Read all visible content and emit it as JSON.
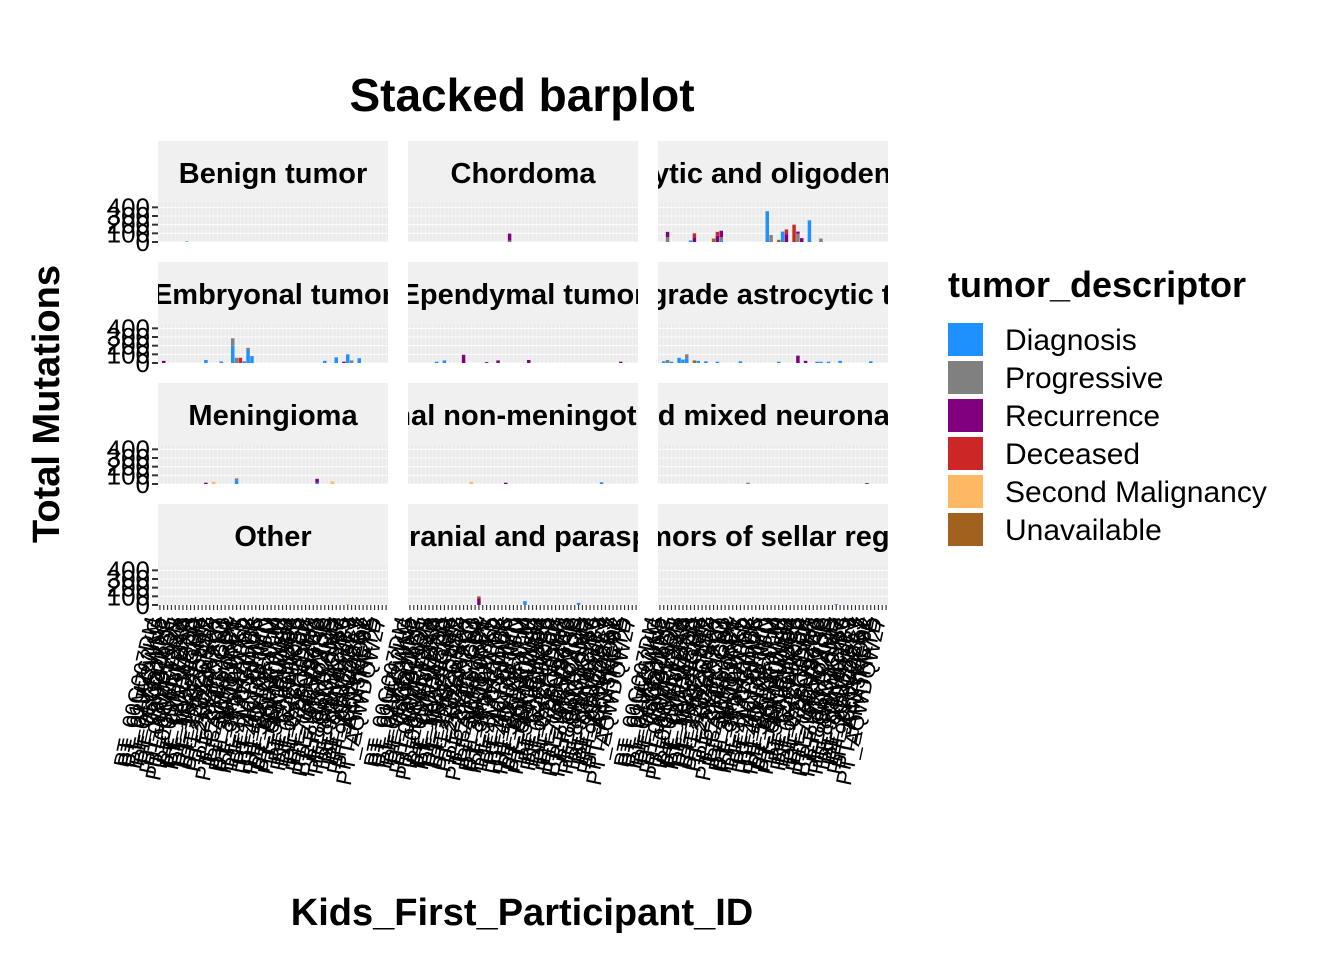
{
  "chart_data": {
    "type": "bar",
    "stacked": true,
    "title": "Stacked barplot",
    "xlabel": "Kids_First_Participant_ID",
    "ylabel": "Total Mutations",
    "y_ticks": [
      0,
      100,
      200,
      300,
      400
    ],
    "ylim": [
      0,
      450
    ],
    "grid": true,
    "facet_columns": 3,
    "legend": {
      "title": "tumor_descriptor",
      "position": "right",
      "entries": [
        {
          "name": "Diagnosis",
          "color": "#1E90FF"
        },
        {
          "name": "Progressive",
          "color": "#808080"
        },
        {
          "name": "Recurrence",
          "color": "#800080"
        },
        {
          "name": "Deceased",
          "color": "#CD2626"
        },
        {
          "name": "Second Malignancy",
          "color": "#FDB863"
        },
        {
          "name": "Unavailable",
          "color": "#A0621E"
        }
      ]
    },
    "x_tick_labels": [
      "PT_00G007DM",
      "PT_01MZ62KG",
      "PT_02J5CWN5",
      "PT_04V47WFC",
      "PT_05QDZ5XF",
      "PT_06A7FKQ1",
      "PT_08M919BH",
      "PT_0DWRY9ZX",
      "PT_0GFEFXX8",
      "PT_0QM4WEXR",
      "PT_0SPKM4S8",
      "PT_0XP3F2ZQ",
      "PT_1AAJ9GBH",
      "PT_1E3E6GMF",
      "PT_1H2REHT2",
      "PT_1YS2D4SX",
      "PT_23NZGSRJ",
      "PT_25Z2NX27",
      "PT_2ECVKTTQ",
      "PT_2MZPGZN1",
      "PT_2YT37G8P",
      "PT_37B5JRP1",
      "PT_3AWKWXEV",
      "PT_3CHB9PK5",
      "PT_3FJT2VYD",
      "PT_3KM9W8S8",
      "PT_3P3HZAMK",
      "PT_3T3VGWC6",
      "PT_3VCS1PPF",
      "PT_41TPBHMN",
      "PT_46JXEN4D",
      "PT_4KT6K1TM",
      "PT_4QAN2XPM",
      "PT_4ZR3FM28",
      "PT_52NXEHNM",
      "PT_56MA0XEB",
      "PT_5DFBV0BM",
      "PT_5NCBHBC6",
      "PT_5PNGW2B6",
      "PT_5ZPPR06P",
      "PT_62ZA1EC4",
      "PT_6FBYEDHK",
      "PT_6YZCG2HJ",
      "PT_72BQ54G6",
      "PT_79BY86AP",
      "PT_7EC5FMSD",
      "PT_7P4V6XCS",
      "PT_7WN7C4MB",
      "PT_82MX6J77",
      "PT_8GN3TQRM",
      "PT_8PA5K9BS",
      "PT_8RDWC1B9",
      "PT_91NVMX1Y",
      "PT_99S5BPE3",
      "PT_9GKZZ8AY",
      "PT_9PJR0ZK7",
      "PT_9S6WMQ92",
      "PT_A4E3KCYE",
      "PT_AFXTHFTD",
      "PT_AQWDQW27"
    ],
    "series_names": [
      "Diagnosis",
      "Progressive",
      "Recurrence",
      "Deceased",
      "Second Malignancy",
      "Unavailable"
    ],
    "facets": [
      {
        "label": "Benign tumor",
        "bars": [
          {
            "pos": 7,
            "values": [
              6,
              0,
              0,
              0,
              0,
              0
            ]
          }
        ]
      },
      {
        "label": "Chordoma",
        "bars": [
          {
            "pos": 26,
            "values": [
              0,
              15,
              82,
              0,
              0,
              0
            ]
          }
        ]
      },
      {
        "label": "Diffuse astrocytic and oligodendroglial tumor",
        "bars": [
          {
            "pos": 2,
            "values": [
              0,
              55,
              62,
              0,
              0,
              0
            ]
          },
          {
            "pos": 8,
            "values": [
              18,
              0,
              0,
              0,
              0,
              0
            ]
          },
          {
            "pos": 9,
            "values": [
              0,
              0,
              55,
              45,
              0,
              0
            ]
          },
          {
            "pos": 14,
            "values": [
              0,
              0,
              0,
              0,
              0,
              40
            ]
          },
          {
            "pos": 15,
            "values": [
              0,
              0,
              72,
              45,
              0,
              0
            ]
          },
          {
            "pos": 16,
            "values": [
              15,
              40,
              75,
              0,
              0,
              0
            ]
          },
          {
            "pos": 28,
            "values": [
              355,
              0,
              0,
              0,
              0,
              0
            ]
          },
          {
            "pos": 29,
            "values": [
              0,
              80,
              0,
              0,
              0,
              0
            ]
          },
          {
            "pos": 31,
            "values": [
              0,
              0,
              0,
              0,
              0,
              25
            ]
          },
          {
            "pos": 32,
            "values": [
              120,
              0,
              0,
              0,
              0,
              0
            ]
          },
          {
            "pos": 33,
            "values": [
              0,
              0,
              90,
              55,
              0,
              0
            ]
          },
          {
            "pos": 35,
            "values": [
              0,
              0,
              0,
              200,
              0,
              0
            ]
          },
          {
            "pos": 36,
            "values": [
              0,
              95,
              25,
              0,
              0,
              0
            ]
          },
          {
            "pos": 37,
            "values": [
              0,
              0,
              45,
              0,
              0,
              0
            ]
          },
          {
            "pos": 39,
            "values": [
              250,
              0,
              0,
              0,
              0,
              0
            ]
          },
          {
            "pos": 42,
            "values": [
              0,
              40,
              0,
              0,
              0,
              0
            ]
          }
        ]
      },
      {
        "label": "Embryonal tumor",
        "bars": [
          {
            "pos": 1,
            "values": [
              0,
              0,
              25,
              0,
              0,
              0
            ]
          },
          {
            "pos": 12,
            "values": [
              35,
              0,
              0,
              0,
              0,
              0
            ]
          },
          {
            "pos": 16,
            "values": [
              18,
              0,
              0,
              0,
              0,
              0
            ]
          },
          {
            "pos": 19,
            "values": [
              200,
              85,
              0,
              0,
              0,
              0
            ]
          },
          {
            "pos": 20,
            "values": [
              0,
              60,
              0,
              0,
              0,
              0
            ]
          },
          {
            "pos": 21,
            "values": [
              0,
              0,
              0,
              60,
              0,
              0
            ]
          },
          {
            "pos": 22,
            "values": [
              20,
              0,
              0,
              0,
              0,
              0
            ]
          },
          {
            "pos": 23,
            "values": [
              150,
              25,
              0,
              0,
              0,
              0
            ]
          },
          {
            "pos": 24,
            "values": [
              80,
              0,
              0,
              0,
              0,
              0
            ]
          },
          {
            "pos": 43,
            "values": [
              25,
              0,
              0,
              0,
              0,
              0
            ]
          },
          {
            "pos": 46,
            "values": [
              65,
              0,
              0,
              0,
              0,
              0
            ]
          },
          {
            "pos": 48,
            "values": [
              0,
              0,
              15,
              0,
              0,
              0
            ]
          },
          {
            "pos": 49,
            "values": [
              100,
              0,
              0,
              0,
              0,
              0
            ]
          },
          {
            "pos": 50,
            "values": [
              0,
              30,
              0,
              0,
              0,
              0
            ]
          },
          {
            "pos": 52,
            "values": [
              55,
              0,
              0,
              0,
              0,
              0
            ]
          }
        ]
      },
      {
        "label": "Ependymal tumor",
        "bars": [
          {
            "pos": 7,
            "values": [
              15,
              0,
              0,
              0,
              0,
              0
            ]
          },
          {
            "pos": 9,
            "values": [
              30,
              0,
              0,
              0,
              0,
              0
            ]
          },
          {
            "pos": 14,
            "values": [
              0,
              0,
              95,
              0,
              0,
              0
            ]
          },
          {
            "pos": 20,
            "values": [
              0,
              0,
              10,
              0,
              0,
              0
            ]
          },
          {
            "pos": 23,
            "values": [
              0,
              0,
              30,
              0,
              0,
              0
            ]
          },
          {
            "pos": 31,
            "values": [
              0,
              0,
              35,
              0,
              0,
              0
            ]
          },
          {
            "pos": 55,
            "values": [
              0,
              0,
              15,
              0,
              0,
              0
            ]
          }
        ]
      },
      {
        "label": "Low-grade astrocytic tumor",
        "bars": [
          {
            "pos": 1,
            "values": [
              20,
              0,
              0,
              0,
              0,
              0
            ]
          },
          {
            "pos": 2,
            "values": [
              10,
              25,
              0,
              0,
              0,
              0
            ]
          },
          {
            "pos": 3,
            "values": [
              15,
              0,
              0,
              0,
              0,
              0
            ]
          },
          {
            "pos": 5,
            "values": [
              60,
              0,
              0,
              0,
              0,
              0
            ]
          },
          {
            "pos": 6,
            "values": [
              40,
              0,
              0,
              0,
              0,
              0
            ]
          },
          {
            "pos": 7,
            "values": [
              55,
              45,
              0,
              0,
              0,
              0
            ]
          },
          {
            "pos": 9,
            "values": [
              0,
              0,
              0,
              0,
              0,
              30
            ]
          },
          {
            "pos": 10,
            "values": [
              25,
              0,
              0,
              0,
              0,
              0
            ]
          },
          {
            "pos": 12,
            "values": [
              20,
              0,
              0,
              0,
              0,
              0
            ]
          },
          {
            "pos": 15,
            "values": [
              15,
              0,
              0,
              0,
              0,
              0
            ]
          },
          {
            "pos": 21,
            "values": [
              20,
              0,
              0,
              0,
              0,
              0
            ]
          },
          {
            "pos": 31,
            "values": [
              15,
              0,
              0,
              0,
              0,
              0
            ]
          },
          {
            "pos": 36,
            "values": [
              0,
              0,
              85,
              0,
              0,
              0
            ]
          },
          {
            "pos": 38,
            "values": [
              0,
              0,
              25,
              0,
              0,
              0
            ]
          },
          {
            "pos": 41,
            "values": [
              15,
              0,
              0,
              0,
              0,
              0
            ]
          },
          {
            "pos": 42,
            "values": [
              15,
              0,
              0,
              0,
              0,
              0
            ]
          },
          {
            "pos": 44,
            "values": [
              15,
              0,
              0,
              0,
              0,
              0
            ]
          },
          {
            "pos": 47,
            "values": [
              25,
              0,
              0,
              0,
              0,
              0
            ]
          },
          {
            "pos": 55,
            "values": [
              20,
              0,
              0,
              0,
              0,
              0
            ]
          }
        ]
      },
      {
        "label": "Meningioma",
        "bars": [
          {
            "pos": 12,
            "values": [
              0,
              0,
              15,
              0,
              0,
              0
            ]
          },
          {
            "pos": 14,
            "values": [
              0,
              0,
              0,
              0,
              25,
              0
            ]
          },
          {
            "pos": 20,
            "values": [
              45,
              20,
              0,
              0,
              0,
              0
            ]
          },
          {
            "pos": 41,
            "values": [
              15,
              0,
              45,
              0,
              0,
              0
            ]
          },
          {
            "pos": 45,
            "values": [
              0,
              0,
              0,
              0,
              30,
              0
            ]
          }
        ]
      },
      {
        "label": "Mesenchymal non-meningothelial tumor",
        "bars": [
          {
            "pos": 16,
            "values": [
              0,
              0,
              0,
              0,
              25,
              0
            ]
          },
          {
            "pos": 25,
            "values": [
              0,
              0,
              15,
              0,
              0,
              0
            ]
          },
          {
            "pos": 50,
            "values": [
              20,
              0,
              0,
              0,
              0,
              0
            ]
          }
        ]
      },
      {
        "label": "Neuronal and mixed neuronal-glial tumor",
        "bars": [
          {
            "pos": 23,
            "values": [
              0,
              15,
              0,
              0,
              0,
              0
            ]
          },
          {
            "pos": 54,
            "values": [
              0,
              0,
              10,
              0,
              0,
              0
            ]
          }
        ]
      },
      {
        "label": "Other",
        "bars": [
          {
            "pos": 49,
            "values": [
              0,
              0,
              0,
              0,
              10,
              0
            ]
          }
        ]
      },
      {
        "label": "Tumors of cranial and paraspinal nerves",
        "bars": [
          {
            "pos": 18,
            "values": [
              0,
              0,
              75,
              0,
              0,
              25
            ]
          },
          {
            "pos": 30,
            "values": [
              45,
              0,
              0,
              0,
              0,
              0
            ]
          },
          {
            "pos": 44,
            "values": [
              25,
              0,
              0,
              0,
              0,
              0
            ]
          }
        ]
      },
      {
        "label": "Tumors of sellar region",
        "bars": [
          {
            "pos": 46,
            "values": [
              10,
              0,
              0,
              0,
              0,
              0
            ]
          }
        ]
      }
    ]
  }
}
